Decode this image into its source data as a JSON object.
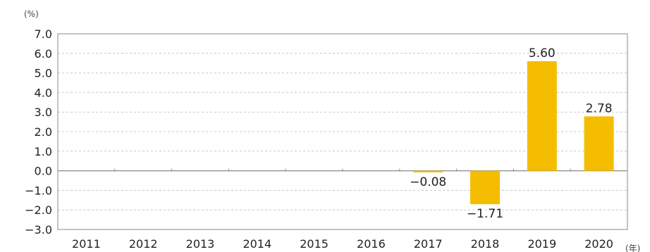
{
  "chart_data": {
    "type": "bar",
    "y_unit": "(%)",
    "x_unit": "(年)",
    "categories": [
      "2011",
      "2012",
      "2013",
      "2014",
      "2015",
      "2016",
      "2017",
      "2018",
      "2019",
      "2020"
    ],
    "values": [
      null,
      null,
      null,
      null,
      null,
      null,
      -0.08,
      -1.71,
      5.6,
      2.78
    ],
    "value_labels": [
      "",
      "",
      "",
      "",
      "",
      "",
      "−0.08",
      "−1.71",
      "5.60",
      "2.78"
    ],
    "ylim": [
      -3.0,
      7.0
    ],
    "yticks": [
      "7.0",
      "6.0",
      "5.0",
      "4.0",
      "3.0",
      "2.0",
      "1.0",
      "0.0",
      "−1.0",
      "−2.0",
      "−3.0"
    ],
    "ytick_values": [
      7,
      6,
      5,
      4,
      3,
      2,
      1,
      0,
      -1,
      -2,
      -3
    ],
    "bar_color": "#f5bd00",
    "grid": true,
    "legend": "none"
  }
}
